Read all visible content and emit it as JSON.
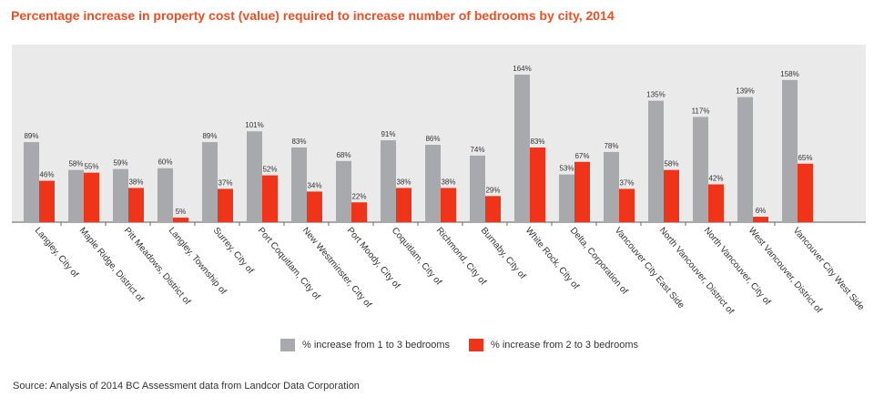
{
  "chart_data": {
    "type": "bar",
    "title": "Percentage increase in property cost (value) required to increase number of bedrooms by city, 2014",
    "xlabel": "",
    "ylabel": "",
    "categories": [
      "Langley, City of",
      "Maple Ridge, District of",
      "Pitt Meadows, District of",
      "Langley, Township of",
      "Surrey, City of",
      "Port Coquitlam, City of",
      "New Westminster, City of",
      "Port Moody, City of",
      "Coquitlam, City of",
      "Richmond, City of",
      "Burnaby, City of",
      "White Rock, City of",
      "Delta, Corporation of",
      "Vancouver City East Side",
      "North Vancouver, District of",
      "North Vancouver, City of",
      "West Vancouver, District of",
      "Vancouver City West Side"
    ],
    "series": [
      {
        "name": "% increase from 1 to 3 bedrooms",
        "color": "#a7a9ac",
        "values": [
          89,
          58,
          59,
          60,
          89,
          101,
          83,
          68,
          91,
          86,
          74,
          164,
          53,
          78,
          135,
          117,
          139,
          158
        ]
      },
      {
        "name": "% increase from 2 to 3 bedrooms",
        "color": "#f0341a",
        "values": [
          46,
          55,
          38,
          5,
          37,
          52,
          34,
          22,
          38,
          38,
          29,
          83,
          67,
          37,
          58,
          42,
          6,
          65
        ]
      }
    ],
    "ylim": [
      0,
      180
    ],
    "grid": false,
    "legend_position": "bottom-center",
    "value_label_suffix": "%",
    "source": "Source: Analysis of 2014 BC Assessment data from Landcor Data Corporation"
  },
  "colors": {
    "title": "#f04e23",
    "plot_background": "#eaeaea",
    "series1": "#a7a9ac",
    "series2": "#f0341a"
  }
}
